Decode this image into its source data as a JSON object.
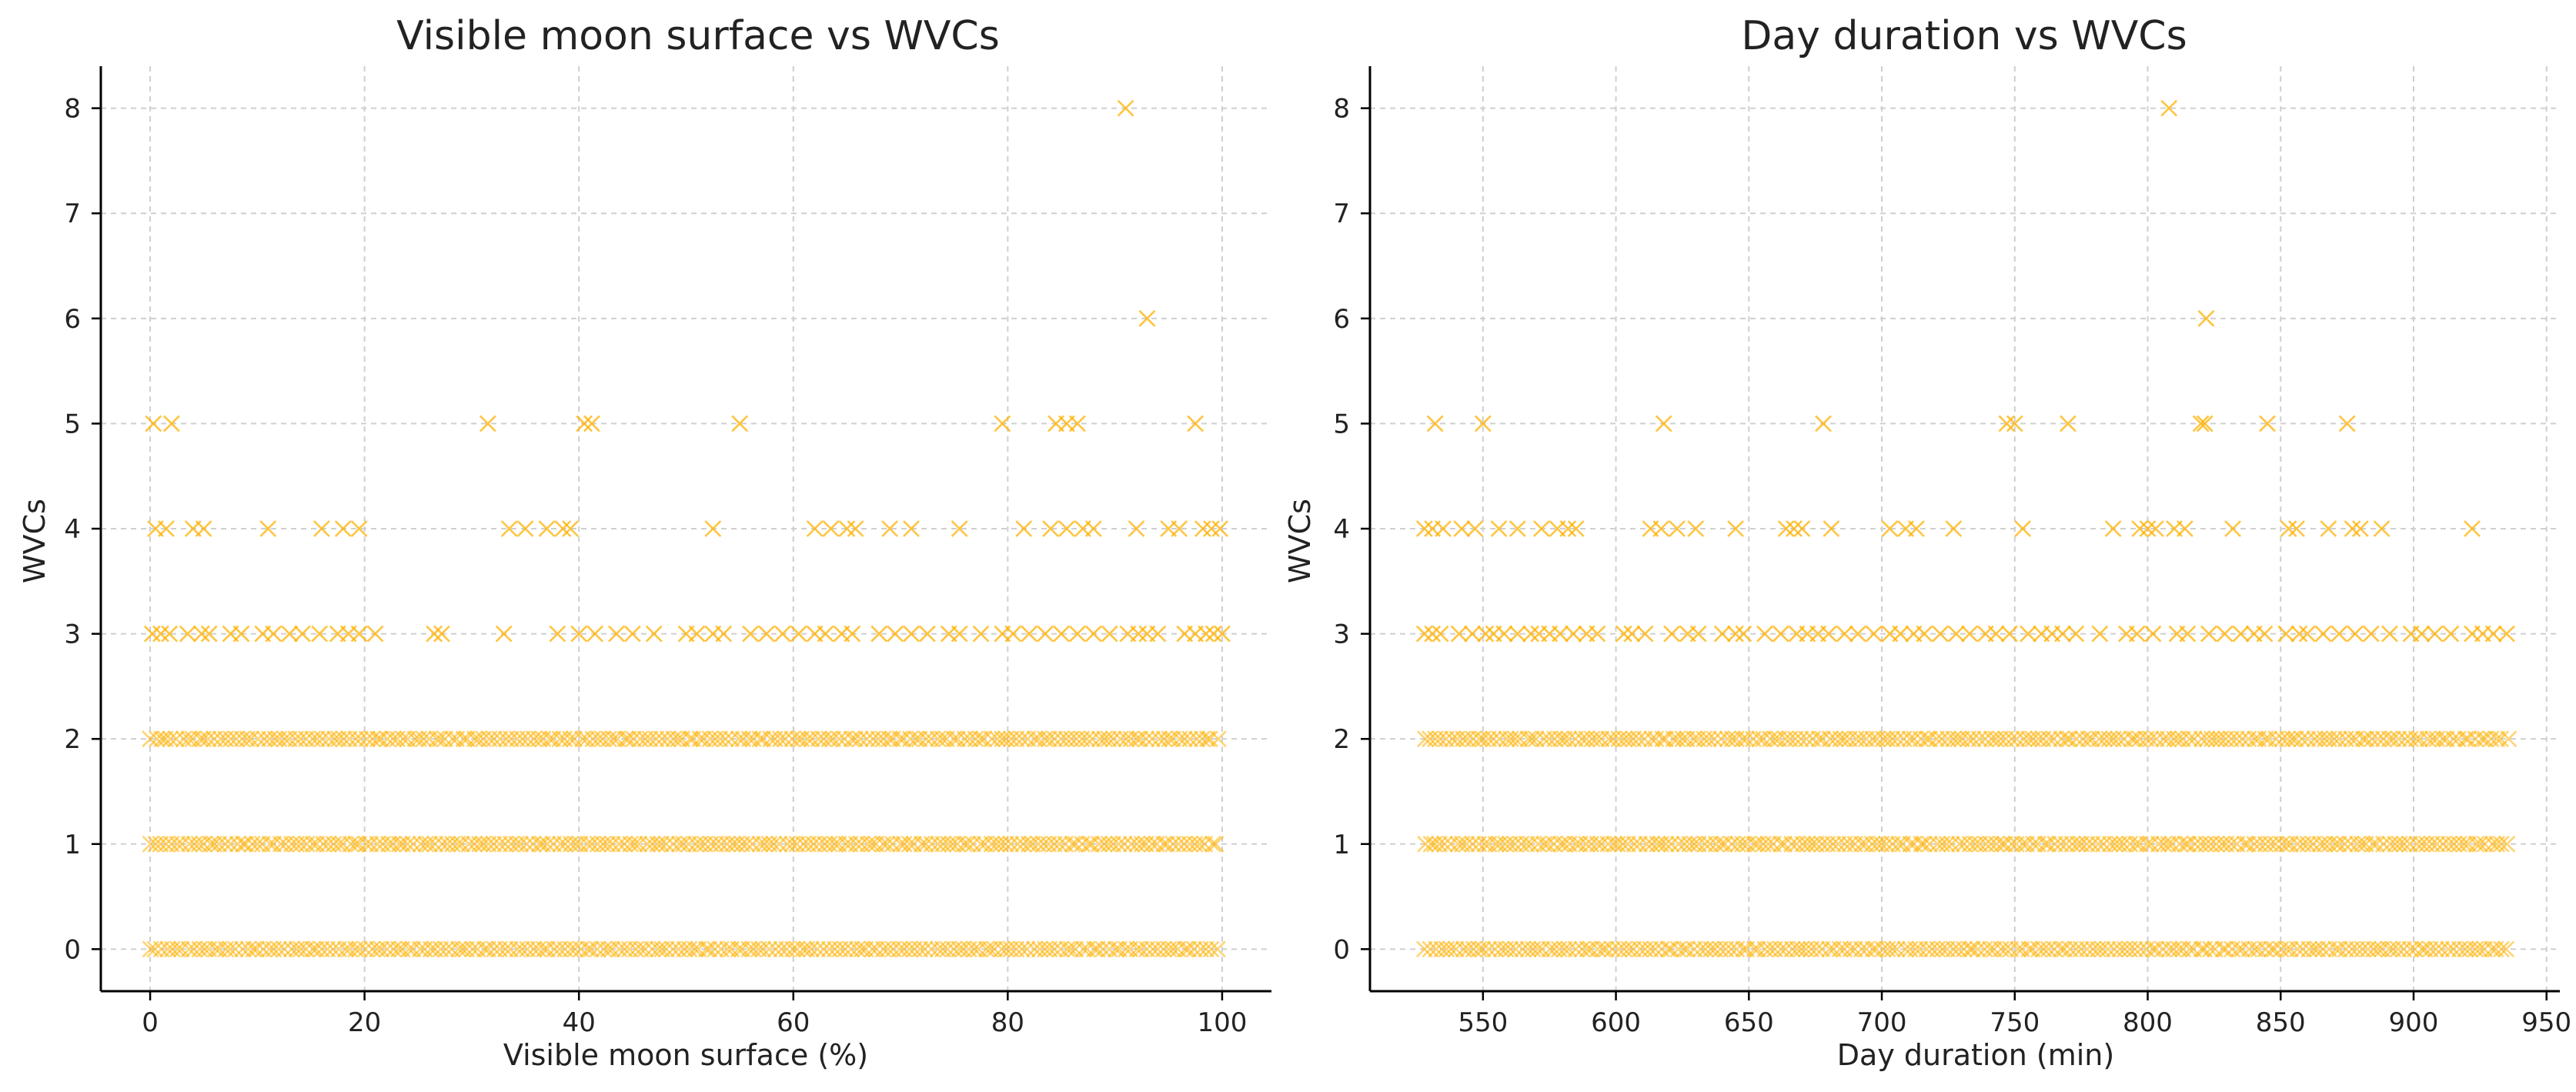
{
  "colors": {
    "marker": "#FFB000"
  },
  "chart_data": [
    {
      "type": "scatter",
      "marker": "x",
      "title": "Visible moon surface vs WVCs",
      "xlabel": "Visible moon surface (%)",
      "ylabel": "WVCs",
      "xlim": [
        -4.6,
        104.6
      ],
      "ylim": [
        -0.4,
        8.4
      ],
      "xticks": [
        0,
        20,
        40,
        60,
        80,
        100
      ],
      "yticks": [
        0,
        1,
        2,
        3,
        4,
        5,
        6,
        7,
        8
      ],
      "xtick_labels": [
        "0",
        "20",
        "40",
        "60",
        "80",
        "100"
      ],
      "ytick_labels": [
        "0",
        "1",
        "2",
        "3",
        "4",
        "5",
        "6",
        "7",
        "8"
      ],
      "grid": true,
      "dense_bands": [
        {
          "y": 0,
          "x_range": [
            0,
            100
          ]
        },
        {
          "y": 1,
          "x_range": [
            0,
            100
          ]
        },
        {
          "y": 2,
          "x_range": [
            0,
            100
          ]
        }
      ],
      "points": [
        {
          "x": 91,
          "y": 8
        },
        {
          "x": 93,
          "y": 6
        },
        {
          "x": 0.3,
          "y": 5
        },
        {
          "x": 2,
          "y": 5
        },
        {
          "x": 31.5,
          "y": 5
        },
        {
          "x": 40.5,
          "y": 5
        },
        {
          "x": 41.2,
          "y": 5
        },
        {
          "x": 55,
          "y": 5
        },
        {
          "x": 79.5,
          "y": 5
        },
        {
          "x": 84.5,
          "y": 5
        },
        {
          "x": 85.5,
          "y": 5
        },
        {
          "x": 86.5,
          "y": 5
        },
        {
          "x": 97.5,
          "y": 5
        },
        {
          "x": 0.5,
          "y": 4
        },
        {
          "x": 1.5,
          "y": 4
        },
        {
          "x": 4,
          "y": 4
        },
        {
          "x": 5,
          "y": 4
        },
        {
          "x": 11,
          "y": 4
        },
        {
          "x": 16,
          "y": 4
        },
        {
          "x": 18,
          "y": 4
        },
        {
          "x": 19.5,
          "y": 4
        },
        {
          "x": 33.5,
          "y": 4
        },
        {
          "x": 35,
          "y": 4
        },
        {
          "x": 37,
          "y": 4
        },
        {
          "x": 38.5,
          "y": 4
        },
        {
          "x": 39.2,
          "y": 4
        },
        {
          "x": 52.5,
          "y": 4
        },
        {
          "x": 62,
          "y": 4
        },
        {
          "x": 63.5,
          "y": 4
        },
        {
          "x": 65,
          "y": 4
        },
        {
          "x": 65.8,
          "y": 4
        },
        {
          "x": 69,
          "y": 4
        },
        {
          "x": 71,
          "y": 4
        },
        {
          "x": 75.5,
          "y": 4
        },
        {
          "x": 81.5,
          "y": 4
        },
        {
          "x": 84,
          "y": 4
        },
        {
          "x": 85.5,
          "y": 4
        },
        {
          "x": 87,
          "y": 4
        },
        {
          "x": 88,
          "y": 4
        },
        {
          "x": 92,
          "y": 4
        },
        {
          "x": 95,
          "y": 4
        },
        {
          "x": 96,
          "y": 4
        },
        {
          "x": 98.2,
          "y": 4
        },
        {
          "x": 99,
          "y": 4
        },
        {
          "x": 99.8,
          "y": 4
        },
        {
          "x": 0.2,
          "y": 3
        },
        {
          "x": 1,
          "y": 3
        },
        {
          "x": 1.8,
          "y": 3
        },
        {
          "x": 3.5,
          "y": 3
        },
        {
          "x": 4.8,
          "y": 3
        },
        {
          "x": 5.5,
          "y": 3
        },
        {
          "x": 7.5,
          "y": 3
        },
        {
          "x": 8.5,
          "y": 3
        },
        {
          "x": 10.5,
          "y": 3
        },
        {
          "x": 11.5,
          "y": 3
        },
        {
          "x": 13,
          "y": 3
        },
        {
          "x": 14.2,
          "y": 3
        },
        {
          "x": 15.8,
          "y": 3
        },
        {
          "x": 17.5,
          "y": 3
        },
        {
          "x": 18.5,
          "y": 3
        },
        {
          "x": 19.5,
          "y": 3
        },
        {
          "x": 21,
          "y": 3
        },
        {
          "x": 26.5,
          "y": 3
        },
        {
          "x": 27.2,
          "y": 3
        },
        {
          "x": 33,
          "y": 3
        },
        {
          "x": 38,
          "y": 3
        },
        {
          "x": 40,
          "y": 3
        },
        {
          "x": 41.5,
          "y": 3
        },
        {
          "x": 43.5,
          "y": 3
        },
        {
          "x": 45,
          "y": 3
        },
        {
          "x": 47,
          "y": 3
        },
        {
          "x": 50,
          "y": 3
        },
        {
          "x": 51,
          "y": 3
        },
        {
          "x": 52.5,
          "y": 3
        },
        {
          "x": 53.5,
          "y": 3
        },
        {
          "x": 56,
          "y": 3
        },
        {
          "x": 57.5,
          "y": 3
        },
        {
          "x": 59,
          "y": 3
        },
        {
          "x": 60.5,
          "y": 3
        },
        {
          "x": 62,
          "y": 3
        },
        {
          "x": 63,
          "y": 3
        },
        {
          "x": 64.5,
          "y": 3
        },
        {
          "x": 65.5,
          "y": 3
        },
        {
          "x": 68,
          "y": 3
        },
        {
          "x": 69.5,
          "y": 3
        },
        {
          "x": 71,
          "y": 3
        },
        {
          "x": 72.5,
          "y": 3
        },
        {
          "x": 74.5,
          "y": 3
        },
        {
          "x": 75.5,
          "y": 3
        },
        {
          "x": 77.5,
          "y": 3
        },
        {
          "x": 79.5,
          "y": 3
        },
        {
          "x": 80.5,
          "y": 3
        },
        {
          "x": 82,
          "y": 3
        },
        {
          "x": 83.5,
          "y": 3
        },
        {
          "x": 85,
          "y": 3
        },
        {
          "x": 86.5,
          "y": 3
        },
        {
          "x": 88,
          "y": 3
        },
        {
          "x": 89.5,
          "y": 3
        },
        {
          "x": 91.2,
          "y": 3
        },
        {
          "x": 92.2,
          "y": 3
        },
        {
          "x": 93,
          "y": 3
        },
        {
          "x": 94,
          "y": 3
        },
        {
          "x": 96.5,
          "y": 3
        },
        {
          "x": 97.5,
          "y": 3
        },
        {
          "x": 98.5,
          "y": 3
        },
        {
          "x": 99.2,
          "y": 3
        },
        {
          "x": 100,
          "y": 3
        }
      ]
    },
    {
      "type": "scatter",
      "marker": "x",
      "title": "Day duration vs WVCs",
      "xlabel": "Day duration (min)",
      "ylabel": "WVCs",
      "xlim": [
        507.5,
        955
      ],
      "ylim": [
        -0.4,
        8.4
      ],
      "xticks": [
        550,
        600,
        650,
        700,
        750,
        800,
        850,
        900,
        950
      ],
      "yticks": [
        0,
        1,
        2,
        3,
        4,
        5,
        6,
        7,
        8
      ],
      "xtick_labels": [
        "550",
        "600",
        "650",
        "700",
        "750",
        "800",
        "850",
        "900",
        "950"
      ],
      "ytick_labels": [
        "0",
        "1",
        "2",
        "3",
        "4",
        "5",
        "6",
        "7",
        "8"
      ],
      "grid": true,
      "dense_bands": [
        {
          "y": 0,
          "x_range": [
            528,
            936
          ]
        },
        {
          "y": 1,
          "x_range": [
            528,
            936
          ]
        },
        {
          "y": 2,
          "x_range": [
            528,
            936
          ]
        }
      ],
      "points": [
        {
          "x": 808,
          "y": 8
        },
        {
          "x": 822,
          "y": 6
        },
        {
          "x": 532,
          "y": 5
        },
        {
          "x": 550,
          "y": 5
        },
        {
          "x": 618,
          "y": 5
        },
        {
          "x": 678,
          "y": 5
        },
        {
          "x": 747,
          "y": 5
        },
        {
          "x": 750,
          "y": 5
        },
        {
          "x": 770,
          "y": 5
        },
        {
          "x": 820,
          "y": 5
        },
        {
          "x": 821.5,
          "y": 5
        },
        {
          "x": 845,
          "y": 5
        },
        {
          "x": 875,
          "y": 5
        },
        {
          "x": 528,
          "y": 4
        },
        {
          "x": 531,
          "y": 4
        },
        {
          "x": 535,
          "y": 4
        },
        {
          "x": 542,
          "y": 4
        },
        {
          "x": 547,
          "y": 4
        },
        {
          "x": 556,
          "y": 4
        },
        {
          "x": 563,
          "y": 4
        },
        {
          "x": 572,
          "y": 4
        },
        {
          "x": 578,
          "y": 4
        },
        {
          "x": 582,
          "y": 4
        },
        {
          "x": 585,
          "y": 4
        },
        {
          "x": 613,
          "y": 4
        },
        {
          "x": 617,
          "y": 4
        },
        {
          "x": 623,
          "y": 4
        },
        {
          "x": 630,
          "y": 4
        },
        {
          "x": 645,
          "y": 4
        },
        {
          "x": 664,
          "y": 4
        },
        {
          "x": 667,
          "y": 4
        },
        {
          "x": 670,
          "y": 4
        },
        {
          "x": 681,
          "y": 4
        },
        {
          "x": 703,
          "y": 4
        },
        {
          "x": 709,
          "y": 4
        },
        {
          "x": 713,
          "y": 4
        },
        {
          "x": 727,
          "y": 4
        },
        {
          "x": 753,
          "y": 4
        },
        {
          "x": 787,
          "y": 4
        },
        {
          "x": 797,
          "y": 4
        },
        {
          "x": 800,
          "y": 4
        },
        {
          "x": 803,
          "y": 4
        },
        {
          "x": 810,
          "y": 4
        },
        {
          "x": 814,
          "y": 4
        },
        {
          "x": 832,
          "y": 4
        },
        {
          "x": 853,
          "y": 4
        },
        {
          "x": 856,
          "y": 4
        },
        {
          "x": 868,
          "y": 4
        },
        {
          "x": 877,
          "y": 4
        },
        {
          "x": 880,
          "y": 4
        },
        {
          "x": 888,
          "y": 4
        },
        {
          "x": 922,
          "y": 4
        },
        {
          "x": 528,
          "y": 3
        },
        {
          "x": 531,
          "y": 3
        },
        {
          "x": 534,
          "y": 3
        },
        {
          "x": 541,
          "y": 3
        },
        {
          "x": 546,
          "y": 3
        },
        {
          "x": 551,
          "y": 3
        },
        {
          "x": 554,
          "y": 3
        },
        {
          "x": 558,
          "y": 3
        },
        {
          "x": 563,
          "y": 3
        },
        {
          "x": 568,
          "y": 3
        },
        {
          "x": 571,
          "y": 3
        },
        {
          "x": 575,
          "y": 3
        },
        {
          "x": 579,
          "y": 3
        },
        {
          "x": 584,
          "y": 3
        },
        {
          "x": 589,
          "y": 3
        },
        {
          "x": 593,
          "y": 3
        },
        {
          "x": 603,
          "y": 3
        },
        {
          "x": 606,
          "y": 3
        },
        {
          "x": 611,
          "y": 3
        },
        {
          "x": 621,
          "y": 3
        },
        {
          "x": 627,
          "y": 3
        },
        {
          "x": 631,
          "y": 3
        },
        {
          "x": 640,
          "y": 3
        },
        {
          "x": 645,
          "y": 3
        },
        {
          "x": 648,
          "y": 3
        },
        {
          "x": 656,
          "y": 3
        },
        {
          "x": 662,
          "y": 3
        },
        {
          "x": 668,
          "y": 3
        },
        {
          "x": 672,
          "y": 3
        },
        {
          "x": 676,
          "y": 3
        },
        {
          "x": 680,
          "y": 3
        },
        {
          "x": 686,
          "y": 3
        },
        {
          "x": 691,
          "y": 3
        },
        {
          "x": 697,
          "y": 3
        },
        {
          "x": 703,
          "y": 3
        },
        {
          "x": 707,
          "y": 3
        },
        {
          "x": 712,
          "y": 3
        },
        {
          "x": 716,
          "y": 3
        },
        {
          "x": 722,
          "y": 3
        },
        {
          "x": 728,
          "y": 3
        },
        {
          "x": 733,
          "y": 3
        },
        {
          "x": 739,
          "y": 3
        },
        {
          "x": 743,
          "y": 3
        },
        {
          "x": 748,
          "y": 3
        },
        {
          "x": 755,
          "y": 3
        },
        {
          "x": 760,
          "y": 3
        },
        {
          "x": 764,
          "y": 3
        },
        {
          "x": 768,
          "y": 3
        },
        {
          "x": 773,
          "y": 3
        },
        {
          "x": 782,
          "y": 3
        },
        {
          "x": 792,
          "y": 3
        },
        {
          "x": 796,
          "y": 3
        },
        {
          "x": 802,
          "y": 3
        },
        {
          "x": 811,
          "y": 3
        },
        {
          "x": 815,
          "y": 3
        },
        {
          "x": 823,
          "y": 3
        },
        {
          "x": 829,
          "y": 3
        },
        {
          "x": 835,
          "y": 3
        },
        {
          "x": 840,
          "y": 3
        },
        {
          "x": 844,
          "y": 3
        },
        {
          "x": 852,
          "y": 3
        },
        {
          "x": 857,
          "y": 3
        },
        {
          "x": 860,
          "y": 3
        },
        {
          "x": 866,
          "y": 3
        },
        {
          "x": 872,
          "y": 3
        },
        {
          "x": 878,
          "y": 3
        },
        {
          "x": 884,
          "y": 3
        },
        {
          "x": 891,
          "y": 3
        },
        {
          "x": 899,
          "y": 3
        },
        {
          "x": 903,
          "y": 3
        },
        {
          "x": 908,
          "y": 3
        },
        {
          "x": 914,
          "y": 3
        },
        {
          "x": 922,
          "y": 3
        },
        {
          "x": 926,
          "y": 3
        },
        {
          "x": 930,
          "y": 3
        },
        {
          "x": 935,
          "y": 3
        }
      ]
    }
  ]
}
